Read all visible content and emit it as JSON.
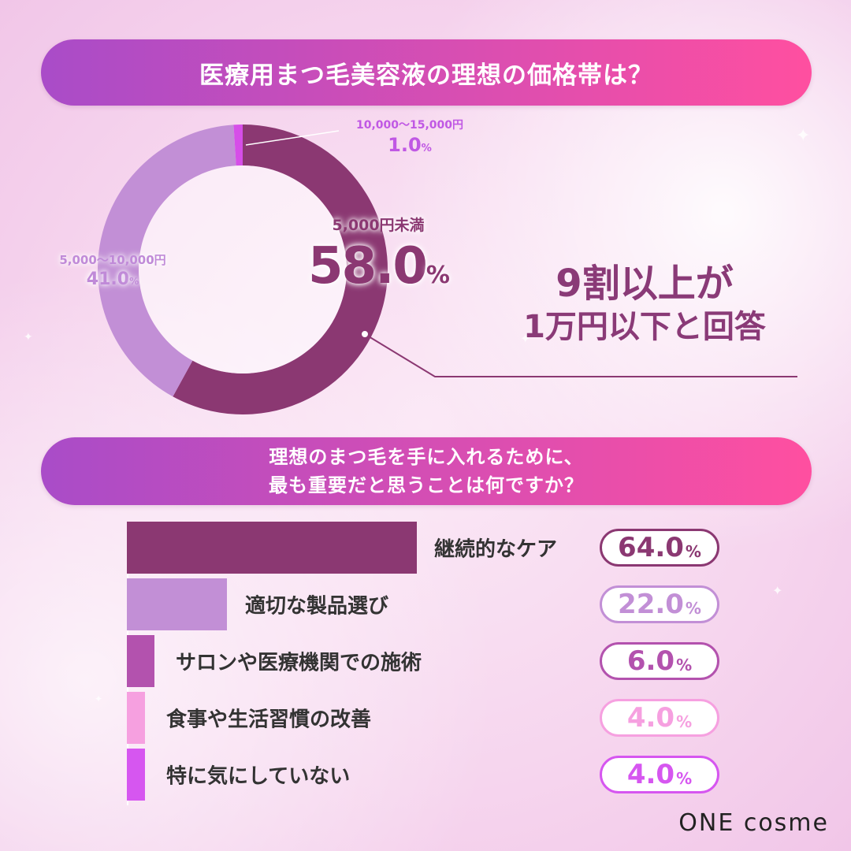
{
  "colors": {
    "banner_start": "#a94cc8",
    "banner_end": "#ff4fa0",
    "dark_purple": "#8b3872",
    "lavender": "#c28fd6",
    "violet": "#d64ee8",
    "magenta": "#b352ae",
    "pink": "#f6a0e0",
    "bright_purple": "#d656f0"
  },
  "sections": {
    "q1_title": "医療用まつ毛美容液の理想の価格帯は？",
    "q2_title_line1": "理想のまつ毛を手に入れるために、",
    "q2_title_line2": "最も重要だと思うことは何ですか？"
  },
  "callout": {
    "line1": "9割以上が",
    "line2": "1万円以下と回答"
  },
  "labels": {
    "slice_small_name": "10,000〜15,000円",
    "slice_small_value": "1.0",
    "slice_main_name": "5,000円未満",
    "slice_main_value": "58.0",
    "slice_left_name": "5,000〜10,000円",
    "slice_left_value": "41.0",
    "percent_sign": "%"
  },
  "chart_data": [
    {
      "type": "pie",
      "title": "医療用まつ毛美容液の理想の価格帯は？",
      "categories": [
        "5,000円未満",
        "5,000〜10,000円",
        "10,000〜15,000円"
      ],
      "values": [
        58.0,
        41.0,
        1.0
      ],
      "colors": [
        "#8b3872",
        "#c28fd6",
        "#d64ee8"
      ],
      "unit": "%"
    },
    {
      "type": "bar",
      "title": "理想のまつ毛を手に入れるために、最も重要だと思うことは何ですか？",
      "categories": [
        "継続的なケア",
        "適切な製品選び",
        "サロンや医療機関での施術",
        "食事や生活習慣の改善",
        "特に気にしていない"
      ],
      "values": [
        64.0,
        22.0,
        6.0,
        4.0,
        4.0
      ],
      "colors": [
        "#8b3872",
        "#c28fd6",
        "#b352ae",
        "#f6a0e0",
        "#d656f0"
      ],
      "unit": "%"
    }
  ],
  "logo": {
    "text": "ONE cosme"
  }
}
